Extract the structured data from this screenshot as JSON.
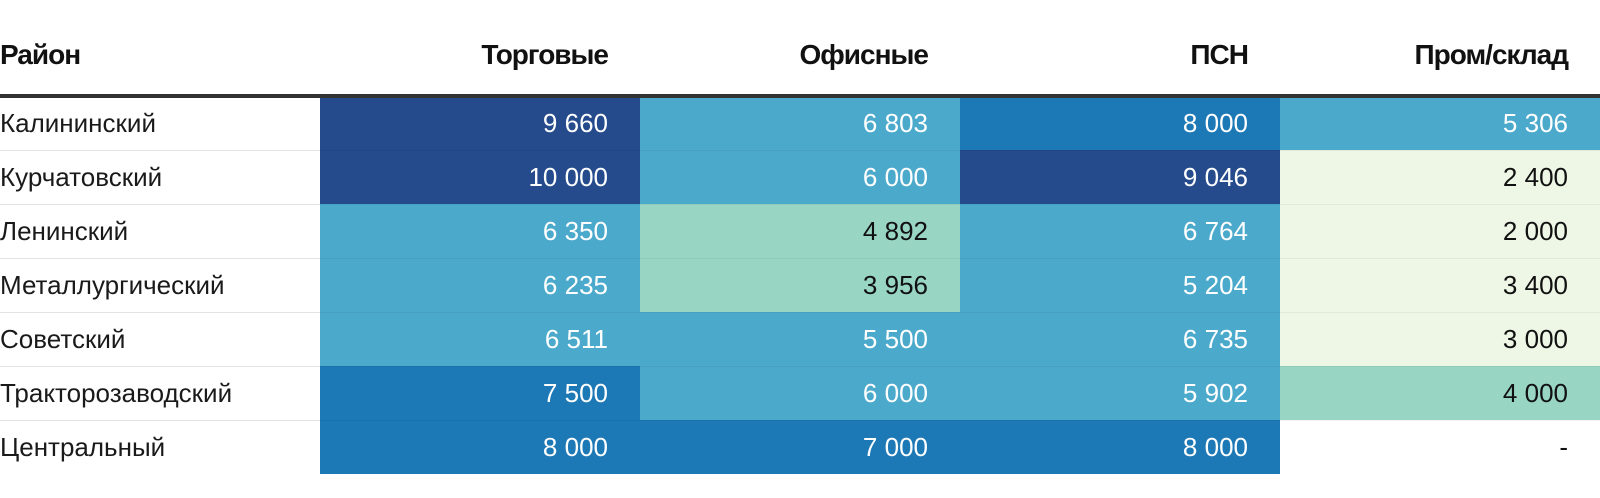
{
  "chart_data": {
    "type": "table",
    "columns": [
      "Район",
      "Торговые",
      "Офисные",
      "ПСН",
      "Пром/склад"
    ],
    "rows": [
      {
        "district": "Калининский",
        "values": [
          "9 660",
          "6 803",
          "8 000",
          "5 306"
        ],
        "nums": [
          9660,
          6803,
          8000,
          5306
        ]
      },
      {
        "district": "Курчатовский",
        "values": [
          "10 000",
          "6 000",
          "9 046",
          "2 400"
        ],
        "nums": [
          10000,
          6000,
          9046,
          2400
        ]
      },
      {
        "district": "Ленинский",
        "values": [
          "6 350",
          "4 892",
          "6 764",
          "2 000"
        ],
        "nums": [
          6350,
          4892,
          6764,
          2000
        ]
      },
      {
        "district": "Металлургический",
        "values": [
          "6 235",
          "3 956",
          "5 204",
          "3 400"
        ],
        "nums": [
          6235,
          3956,
          5204,
          3400
        ]
      },
      {
        "district": "Советский",
        "values": [
          "6 511",
          "5 500",
          "6 735",
          "3 000"
        ],
        "nums": [
          6511,
          5500,
          6735,
          3000
        ]
      },
      {
        "district": "Тракторозаводский",
        "values": [
          "7 500",
          "6 000",
          "5 902",
          "4 000"
        ],
        "nums": [
          7500,
          6000,
          5902,
          4000
        ]
      },
      {
        "district": "Центральный",
        "values": [
          "8 000",
          "7 000",
          "8 000",
          "-"
        ],
        "nums": [
          8000,
          7000,
          8000,
          null
        ]
      }
    ],
    "color_scale": [
      {
        "max": 3500,
        "bg": "#eef7e6",
        "fg": "#111111"
      },
      {
        "max": 5000,
        "bg": "#98d6c3",
        "fg": "#111111"
      },
      {
        "max": 7000,
        "bg": "#4ba9cc",
        "fg": "#ffffff"
      },
      {
        "max": 9000,
        "bg": "#1d78b6",
        "fg": "#ffffff"
      },
      {
        "max": 99999,
        "bg": "#254b8c",
        "fg": "#ffffff"
      }
    ],
    "empty_cell": {
      "bg": "#ffffff",
      "fg": "#111111"
    }
  }
}
